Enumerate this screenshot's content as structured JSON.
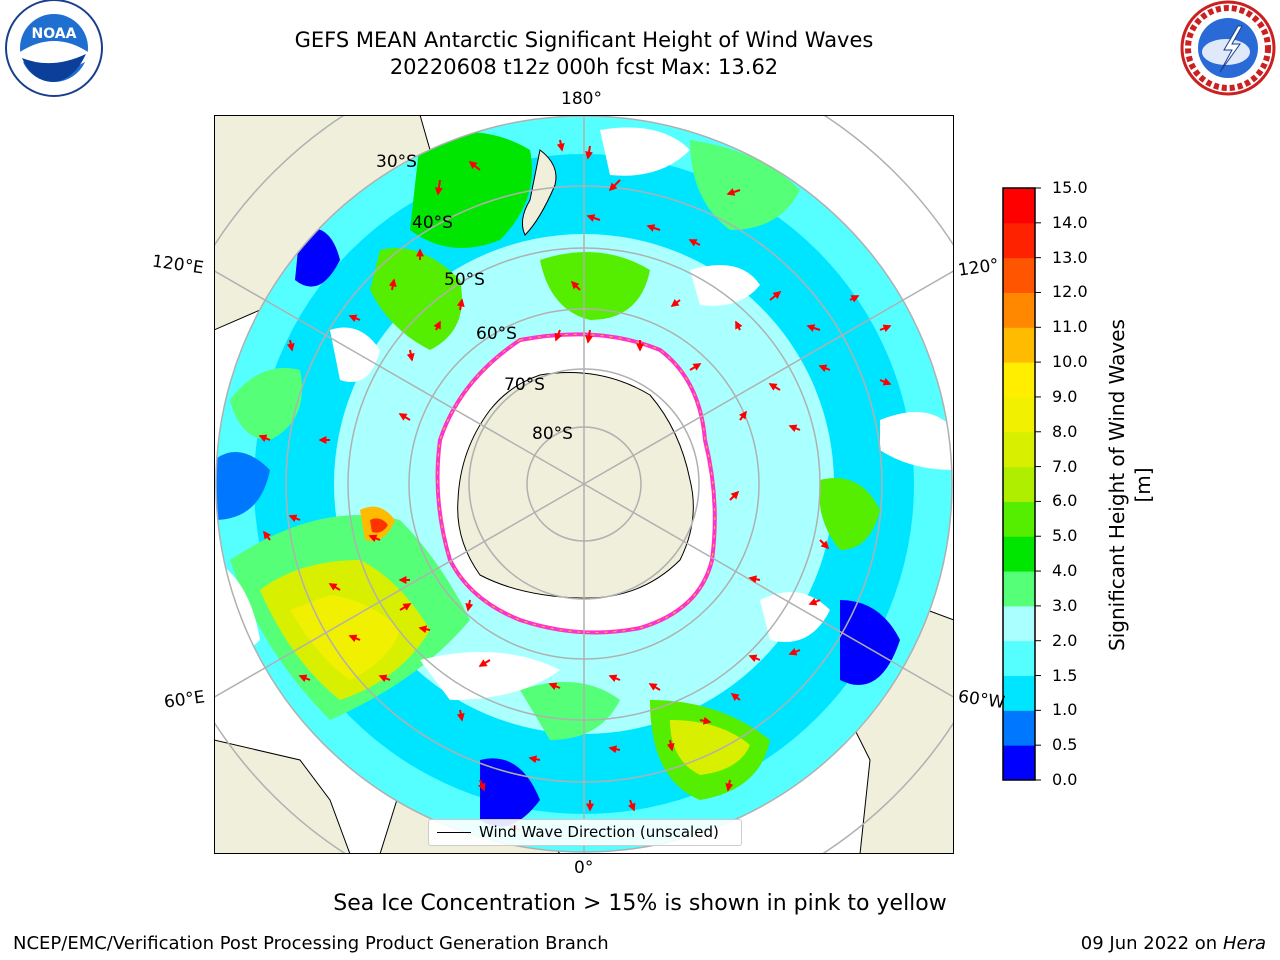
{
  "title": {
    "line1": "GEFS MEAN Antarctic Significant Height of Wind Waves",
    "line2": "20220608 t12z 000h fcst   Max: 13.62"
  },
  "logos": {
    "left": "noaa-logo",
    "right": "nws-logo"
  },
  "map": {
    "projection": "south-polar-stereographic",
    "longitude_labels": {
      "top": "180°",
      "bottom": "0°",
      "upper_left": "120°E",
      "lower_left": "60°E",
      "upper_right": "120°",
      "lower_right": "60°W"
    },
    "latitude_labels": [
      "30°S",
      "40°S",
      "50°S",
      "60°S",
      "70°S",
      "80°S"
    ],
    "land_color": "#efefdc",
    "ice_edge_colors": [
      "#ff33cc",
      "#ffcc00"
    ]
  },
  "colorbar": {
    "label": "Significant Height of Wind Waves [m]",
    "ticks": [
      "0.0",
      "0.5",
      "1.0",
      "1.5",
      "2.0",
      "3.0",
      "4.0",
      "5.0",
      "6.0",
      "7.0",
      "8.0",
      "9.0",
      "10.0",
      "11.0",
      "12.0",
      "13.0",
      "14.0",
      "15.0"
    ],
    "colors": [
      "#0000ff",
      "#0077ff",
      "#00e5ff",
      "#55ffff",
      "#aaffff",
      "#55ff77",
      "#00e600",
      "#55ee00",
      "#b0ee00",
      "#d8f000",
      "#f0f000",
      "#ffee00",
      "#ffbb00",
      "#ff8800",
      "#ff5500",
      "#ff2200",
      "#ff0000"
    ]
  },
  "legend": {
    "label": "Wind Wave Direction (unscaled)"
  },
  "footer": {
    "ice_note": "Sea Ice Concentration > 15% is shown in pink to yellow",
    "credit": "NCEP/EMC/Verification Post Processing Product Generation Branch",
    "date": "09 Jun 2022 on",
    "system": "Hera"
  }
}
